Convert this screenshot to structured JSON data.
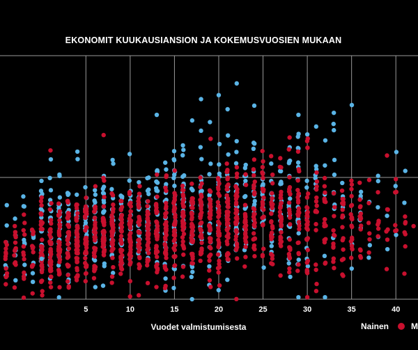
{
  "chart_data": {
    "type": "scatter",
    "title": "EKONOMIT KUUKAUSIANSION JA KOKEMUSVUOSIEN MUKAAN",
    "xlabel": "Vuodet valmistumisesta",
    "ylabel": "",
    "xlim": [
      -4.7,
      42.5
    ],
    "ylim": [
      0,
      1
    ],
    "xticks": [
      5,
      10,
      15,
      20,
      25,
      30,
      35,
      40
    ],
    "grid": true,
    "colors": {
      "red": "#c8102e",
      "blue": "#5ab4e6",
      "background": "#000000",
      "grid": "#9a9a9a"
    },
    "legend": {
      "placement": "bottom-right",
      "entries": [
        "Nainen",
        "M"
      ]
    },
    "series": [
      {
        "name": "Nainen",
        "color": "#c8102e"
      },
      {
        "name": "M",
        "color": "#5ab4e6"
      }
    ],
    "outliers": [
      {
        "series": 1,
        "x": 20,
        "y": 0.838
      },
      {
        "series": 1,
        "x": 21,
        "y": 0.78
      },
      {
        "series": 1,
        "x": 13,
        "y": 0.757
      },
      {
        "series": 1,
        "x": 29,
        "y": 0.757
      },
      {
        "series": 1,
        "x": 17,
        "y": 0.734
      },
      {
        "series": 1,
        "x": 31,
        "y": 0.709
      },
      {
        "series": 1,
        "x": 33,
        "y": 0.694
      },
      {
        "series": 0,
        "x": 7,
        "y": 0.674
      },
      {
        "series": 0,
        "x": 28,
        "y": 0.664
      },
      {
        "series": 0,
        "x": 39,
        "y": 0.59
      },
      {
        "series": 0,
        "x": 1,
        "y": 0.611
      },
      {
        "series": 1,
        "x": 38,
        "y": 0.485
      },
      {
        "series": 0,
        "x": 40,
        "y": 0.493
      },
      {
        "series": 1,
        "x": 0,
        "y": 0.166
      },
      {
        "series": 0,
        "x": -2,
        "y": 0.109
      },
      {
        "series": 0,
        "x": -2,
        "y": 0.084
      },
      {
        "series": 1,
        "x": 29,
        "y": 0.008
      },
      {
        "series": 0,
        "x": 30,
        "y": 0.008
      },
      {
        "series": 1,
        "x": 32,
        "y": 0.008
      },
      {
        "series": 0,
        "x": 42,
        "y": 0.3
      }
    ]
  }
}
